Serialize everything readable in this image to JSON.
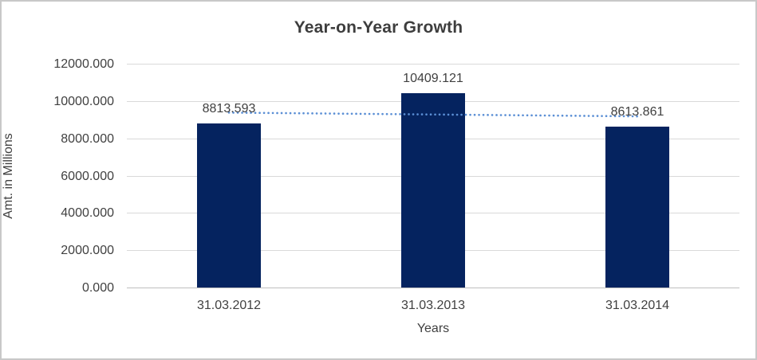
{
  "chart_data": {
    "type": "bar",
    "title": "Year-on-Year Growth",
    "xlabel": "Years",
    "ylabel": "Amt. in Millions",
    "categories": [
      "31.03.2012",
      "31.03.2013",
      "31.03.2014"
    ],
    "values": [
      8813.593,
      10409.121,
      8613.861
    ],
    "data_labels": [
      "8813.593",
      "10409.121",
      "8613.861"
    ],
    "y_ticks": [
      {
        "value": 0,
        "label": "0.000"
      },
      {
        "value": 2000,
        "label": "2000.000"
      },
      {
        "value": 4000,
        "label": "4000.000"
      },
      {
        "value": 6000,
        "label": "6000.000"
      },
      {
        "value": 8000,
        "label": "8000.000"
      },
      {
        "value": 10000,
        "label": "10000.000"
      },
      {
        "value": 12000,
        "label": "12000.000"
      }
    ],
    "ylim": [
      0,
      12000
    ],
    "grid": true,
    "legend": "none",
    "trendline": {
      "type": "linear",
      "style": "dotted",
      "start_value": 9378.7,
      "end_value": 9179.0
    },
    "colors": {
      "bar": "#05235f",
      "trendline": "#5b8fd5",
      "gridline": "#d9d9d9",
      "axis_line": "#bfbfbf",
      "text": "#404040",
      "title": "#3d3d3d",
      "border": "#c8c8c8",
      "background": "#ffffff"
    }
  }
}
